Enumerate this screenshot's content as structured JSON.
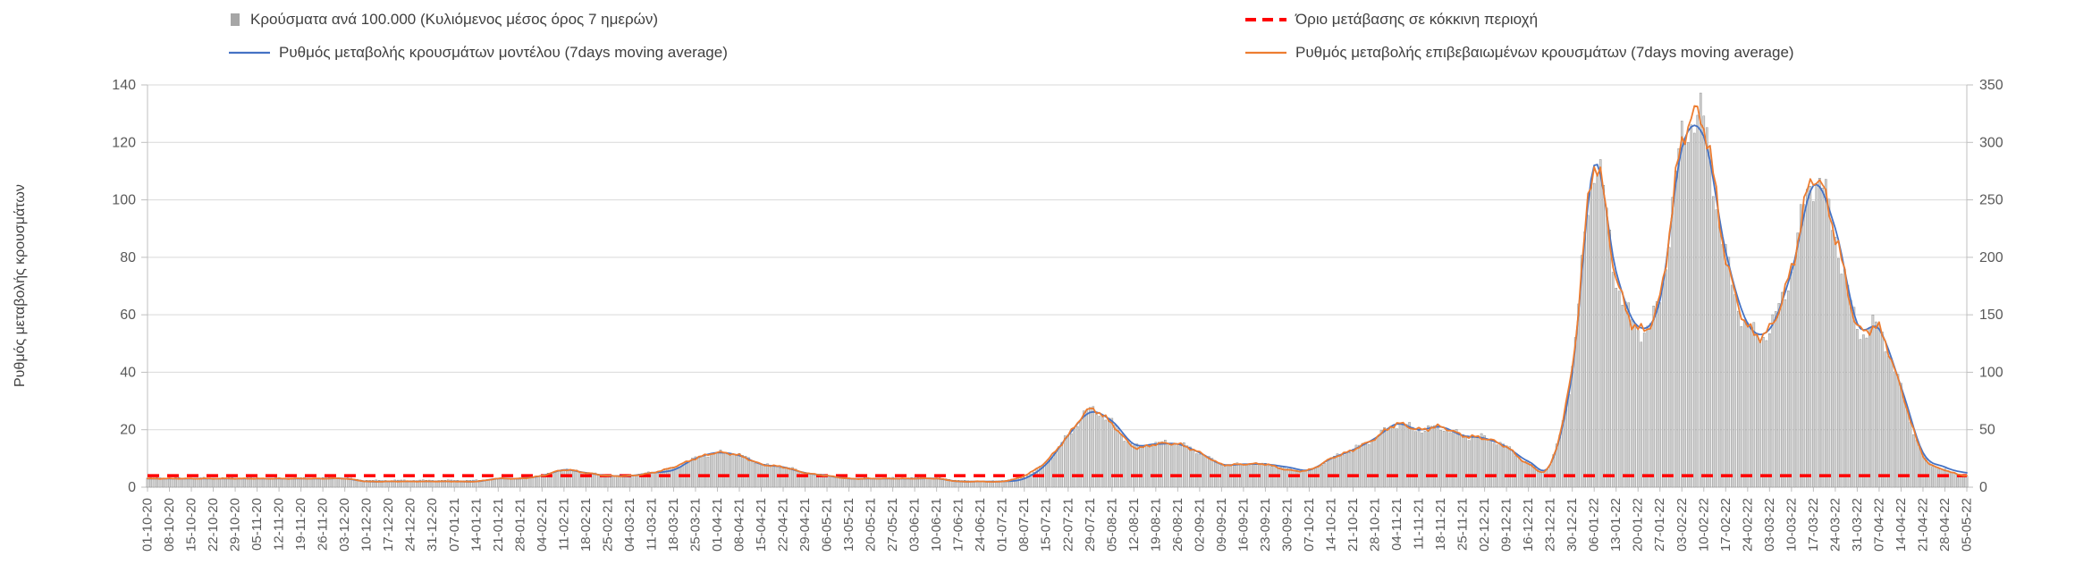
{
  "page": {
    "background": "#ffffff"
  },
  "legend": {
    "items": [
      {
        "label": "Κρούσματα ανά 100.000 (Κυλιόμενος μέσος όρος 7 ημερών)",
        "type": "bar",
        "color": "#a6a6a6"
      },
      {
        "label": "Όριο μετάβασης σε κόκκινη περιοχή",
        "type": "dashed-line",
        "color": "#ff0000"
      },
      {
        "label": "Ρυθμός μεταβολής κρουσμάτων μοντέλου (7days moving average)",
        "type": "line",
        "color": "#4472c4"
      },
      {
        "label": "Ρυθμός μεταβολής επιβεβαιωμένων κρουσμάτων (7days moving average)",
        "type": "line",
        "color": "#ed7d31"
      }
    ]
  },
  "colors": {
    "grid": "#d9d9d9",
    "axis": "#bfbfbf",
    "text": "#595959",
    "bar_stroke": "#7f7f7f"
  },
  "chart_data": {
    "type": "bar+line",
    "title": "",
    "ylabel_left": "Ρυθμός μεταβολής κρουσμάτων",
    "legend_position": "top",
    "grid": true,
    "left_axis": {
      "min": 0,
      "max": 140,
      "step": 20,
      "ticks": [
        0,
        20,
        40,
        60,
        80,
        100,
        120,
        140
      ]
    },
    "right_axis": {
      "min": 0,
      "max": 350,
      "step": 50,
      "ticks": [
        0,
        50,
        100,
        150,
        200,
        250,
        300,
        350
      ]
    },
    "categories": [
      "01-10-20",
      "08-10-20",
      "15-10-20",
      "22-10-20",
      "29-10-20",
      "05-11-20",
      "12-11-20",
      "19-11-20",
      "26-11-20",
      "03-12-20",
      "10-12-20",
      "17-12-20",
      "24-12-20",
      "31-12-20",
      "07-01-21",
      "14-01-21",
      "21-01-21",
      "28-01-21",
      "04-02-21",
      "11-02-21",
      "18-02-21",
      "25-02-21",
      "04-03-21",
      "11-03-21",
      "18-03-21",
      "25-03-21",
      "01-04-21",
      "08-04-21",
      "15-04-21",
      "22-04-21",
      "29-04-21",
      "06-05-21",
      "13-05-21",
      "20-05-21",
      "27-05-21",
      "03-06-21",
      "10-06-21",
      "17-06-21",
      "24-06-21",
      "01-07-21",
      "08-07-21",
      "15-07-21",
      "22-07-21",
      "29-07-21",
      "05-08-21",
      "12-08-21",
      "19-08-21",
      "26-08-21",
      "02-09-21",
      "09-09-21",
      "16-09-21",
      "23-09-21",
      "30-09-21",
      "07-10-21",
      "14-10-21",
      "21-10-21",
      "28-10-21",
      "04-11-21",
      "11-11-21",
      "18-11-21",
      "25-11-21",
      "02-12-21",
      "09-12-21",
      "16-12-21",
      "23-12-21",
      "30-12-21",
      "06-01-22",
      "13-01-22",
      "20-01-22",
      "27-01-22",
      "03-02-22",
      "10-02-22",
      "17-02-22",
      "24-02-22",
      "03-03-22",
      "10-03-22",
      "17-03-22",
      "24-03-22",
      "31-03-22",
      "07-04-22",
      "14-04-22",
      "21-04-22",
      "28-04-22",
      "05-05-22"
    ],
    "series": [
      {
        "name": "Κρούσματα ανά 100.000 (Κυλιόμενος μέσος όρος 7 ημερών)",
        "type": "bar",
        "axis": "right",
        "color": "#d2d2d2",
        "values": [
          8,
          8,
          8,
          8,
          8,
          8,
          8,
          8,
          8,
          8,
          6,
          6,
          6,
          6,
          6,
          6,
          7,
          8,
          10,
          15,
          13,
          10,
          10,
          13,
          17,
          25,
          30,
          28,
          20,
          18,
          13,
          10,
          8,
          8,
          8,
          8,
          8,
          6,
          5,
          6,
          9,
          22,
          45,
          67,
          56,
          36,
          38,
          38,
          30,
          20,
          20,
          20,
          16,
          15,
          25,
          33,
          43,
          55,
          50,
          52,
          45,
          43,
          35,
          21,
          20,
          105,
          280,
          183,
          138,
          165,
          300,
          315,
          200,
          140,
          138,
          190,
          270,
          220,
          140,
          138,
          85,
          28,
          15,
          10
        ]
      },
      {
        "name": "Ρυθμός μεταβολής κρουσμάτων μοντέλου (7days moving average)",
        "type": "line",
        "axis": "left",
        "color": "#4472c4",
        "values": [
          3,
          3,
          3,
          3,
          3,
          3,
          3,
          3,
          3,
          3,
          2,
          2,
          2,
          2,
          2,
          2,
          3,
          3,
          4,
          6,
          5,
          4,
          4,
          5,
          6,
          10,
          12,
          11,
          8,
          7,
          5,
          4,
          3,
          3,
          3,
          3,
          3,
          2,
          2,
          2,
          3,
          8,
          18,
          26,
          23,
          15,
          15,
          15,
          12,
          8,
          8,
          8,
          7,
          6,
          10,
          13,
          17,
          22,
          20,
          21,
          18,
          17,
          14,
          9,
          8,
          40,
          112,
          75,
          56,
          65,
          118,
          122,
          82,
          57,
          55,
          75,
          105,
          90,
          57,
          55,
          35,
          12,
          7,
          5
        ]
      },
      {
        "name": "Ρυθμός μεταβολής επιβεβαιωμένων κρουσμάτων (7days moving average)",
        "type": "line",
        "axis": "left",
        "color": "#ed7d31",
        "values": [
          3,
          3,
          3,
          3,
          3,
          3,
          3,
          3,
          3,
          3,
          2,
          2,
          2,
          2,
          2,
          2,
          3,
          3,
          4,
          6,
          5,
          4,
          4,
          5,
          7,
          10,
          12,
          11,
          8,
          7,
          5,
          4,
          3,
          3,
          3,
          3,
          3,
          2,
          2,
          2,
          4,
          9,
          18,
          27,
          22,
          14,
          15,
          15,
          12,
          8,
          8,
          8,
          6,
          6,
          10,
          13,
          17,
          22,
          20,
          21,
          18,
          17,
          14,
          8,
          8,
          42,
          112,
          73,
          55,
          66,
          120,
          126,
          80,
          56,
          55,
          76,
          108,
          88,
          56,
          55,
          34,
          11,
          6,
          4
        ]
      },
      {
        "name": "Όριο μετάβασης σε κόκκινη περιοχή",
        "type": "threshold",
        "axis": "left",
        "color": "#ff0000",
        "value": 4
      }
    ]
  }
}
